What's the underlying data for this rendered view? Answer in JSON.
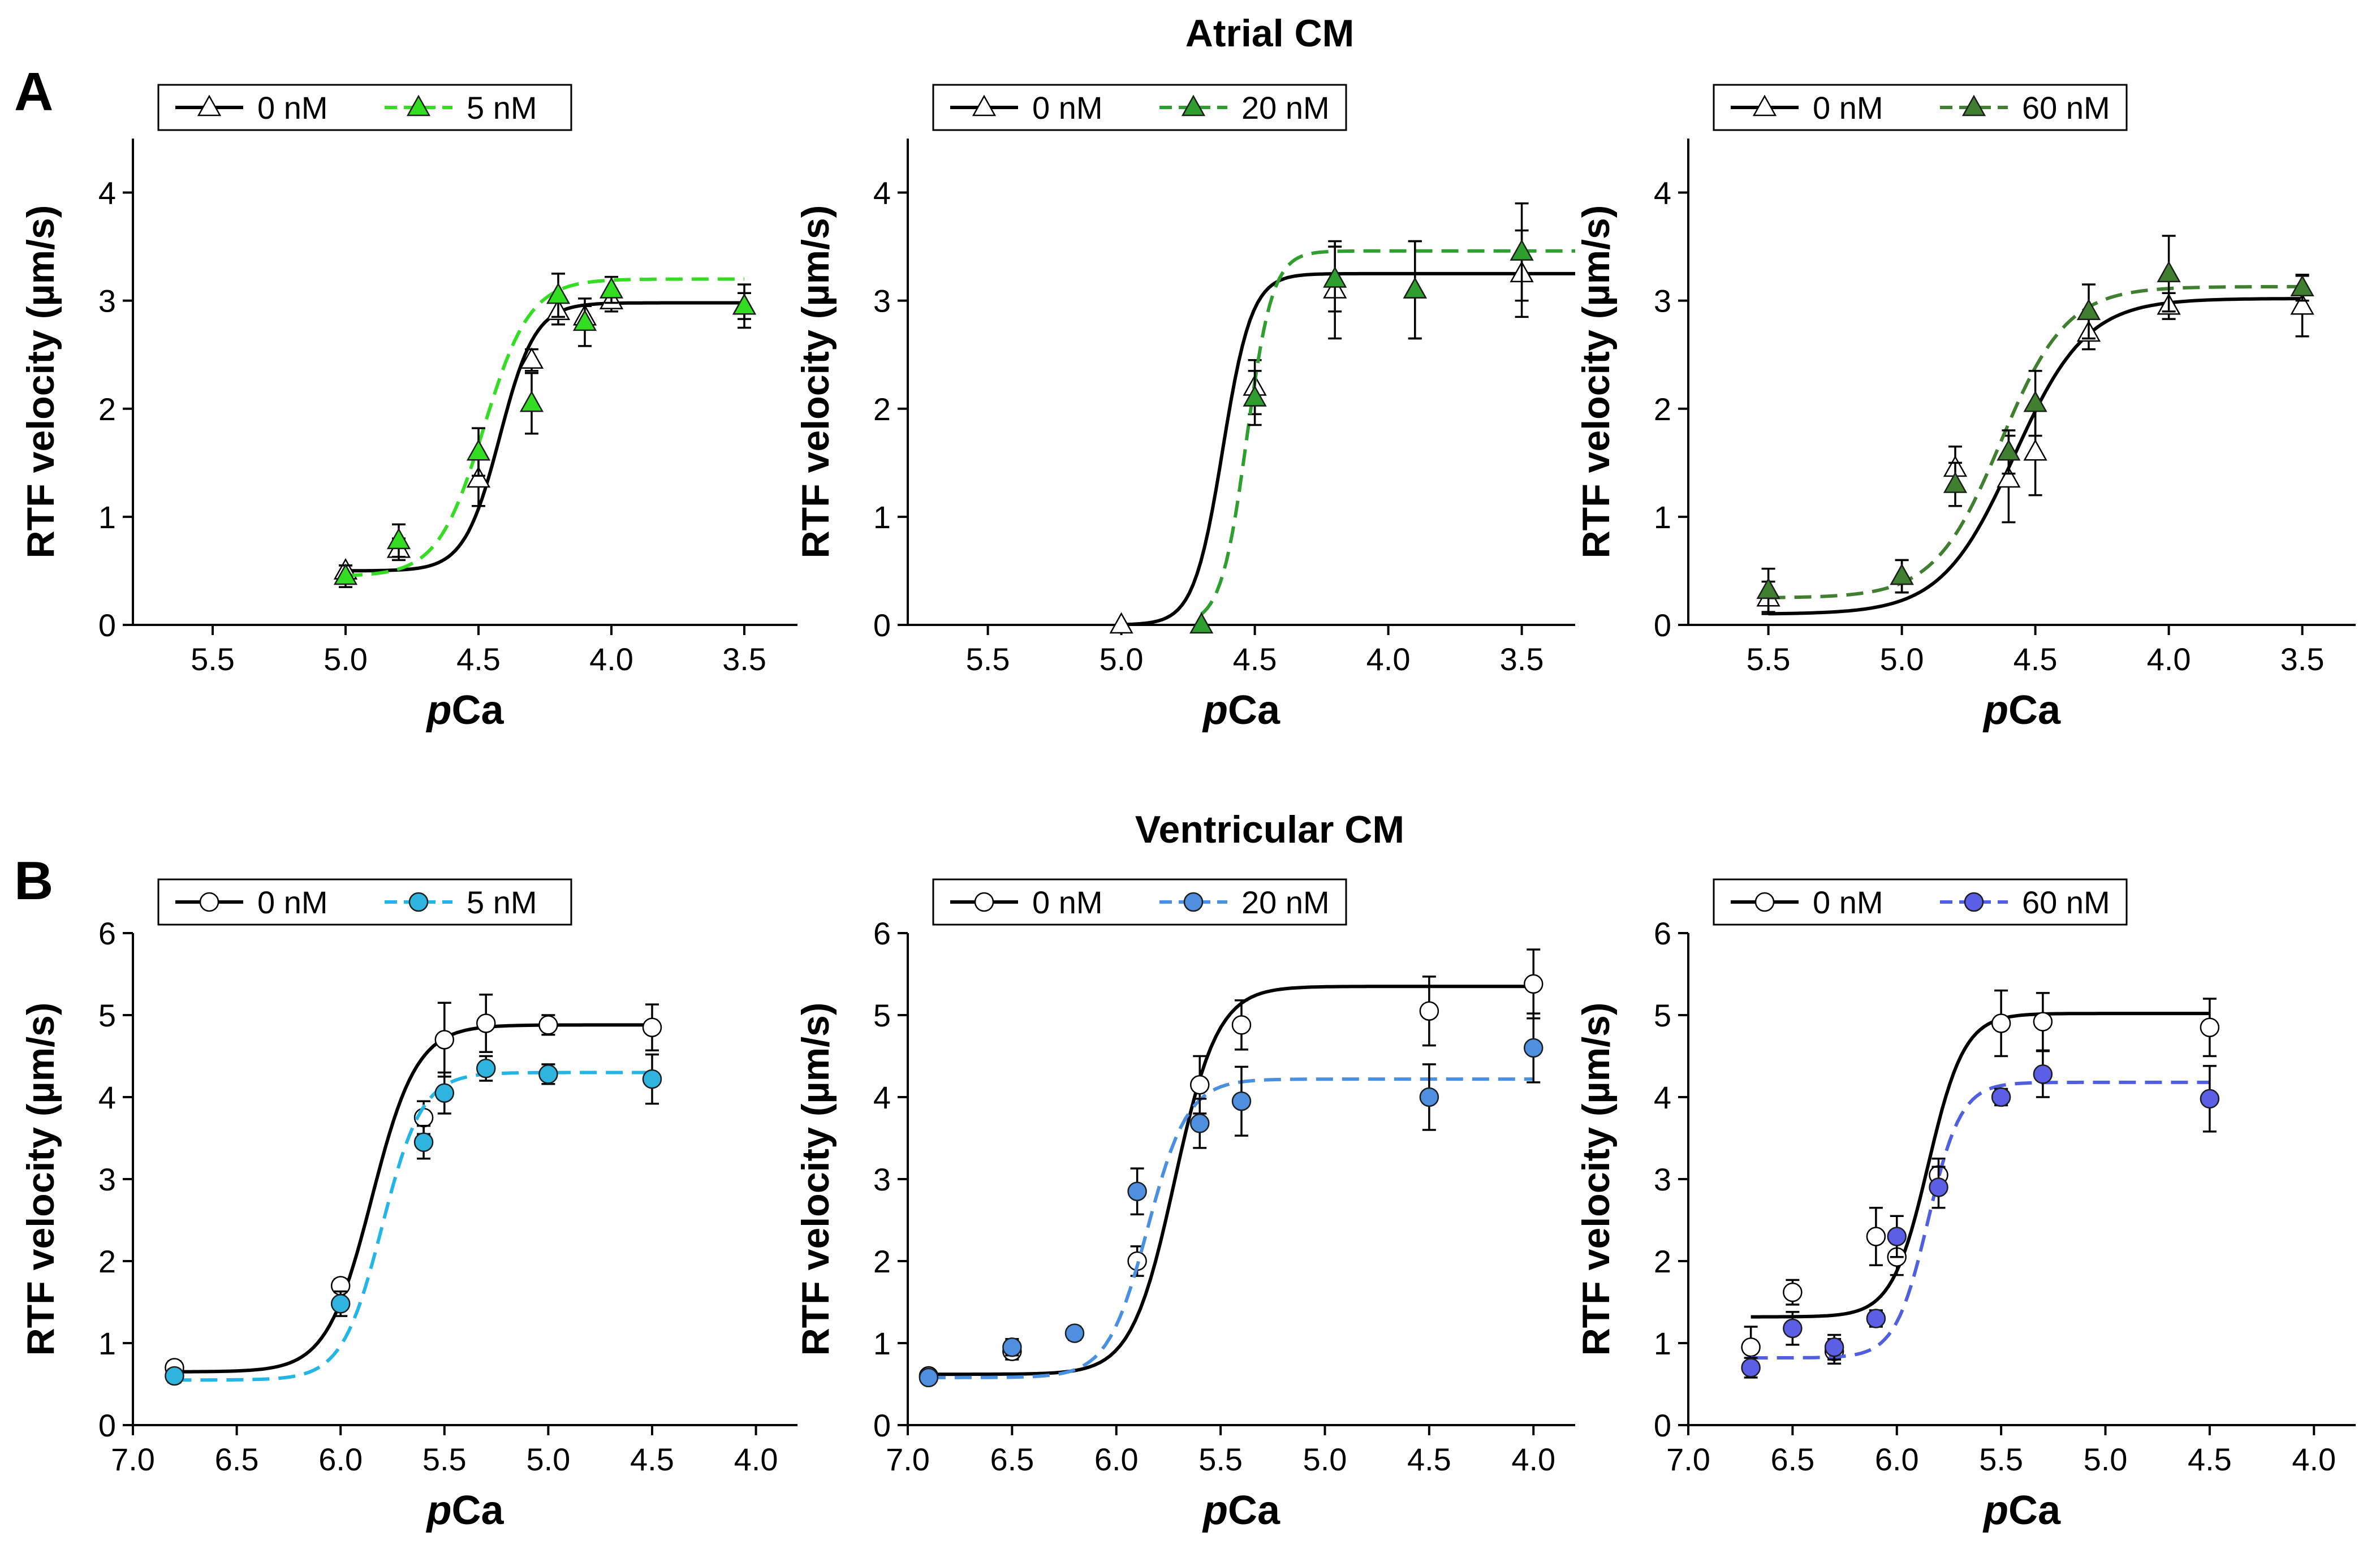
{
  "figure": {
    "row_a": {
      "panel_letter": "A",
      "title": "Atrial CM"
    },
    "row_b": {
      "panel_letter": "B",
      "title": "Ventricular CM"
    },
    "ylabel": "RTF velocity (µm/s)",
    "xlabel_italic": "p",
    "xlabel_rest": "Ca"
  },
  "chart_data": [
    {
      "type": "line",
      "row": "A",
      "title": "Atrial CM",
      "xlabel": "pCa",
      "ylabel": "RTF velocity (µm/s)",
      "xlim": [
        5.8,
        3.3
      ],
      "ylim": [
        0,
        4.5
      ],
      "xticks": [
        "5.5",
        "5.0",
        "4.5",
        "4.0",
        "3.5"
      ],
      "xtick_values": [
        5.5,
        5.0,
        4.5,
        4.0,
        3.5
      ],
      "yticks": [
        "0",
        "1",
        "2",
        "3",
        "4"
      ],
      "ytick_values": [
        0,
        1,
        2,
        3,
        4
      ],
      "marker": "triangle",
      "series": [
        {
          "name": "0 nM",
          "color": "#000000",
          "fill": "#ffffff",
          "dashed": false,
          "x": [
            5.0,
            4.8,
            4.5,
            4.3,
            4.2,
            4.1,
            4.0,
            3.5
          ],
          "y": [
            0.5,
            0.7,
            1.35,
            2.45,
            2.9,
            2.85,
            3.0,
            2.95
          ],
          "err": [
            0.05,
            0.1,
            0.25,
            0.1,
            0.12,
            0.1,
            0.1,
            0.12
          ],
          "fit": {
            "min": 0.5,
            "max": 2.98,
            "ec50": 4.42,
            "slope": 6.5,
            "x0": 5.0,
            "x1": 3.5
          }
        },
        {
          "name": "5 nM",
          "color": "#33dd22",
          "fill": "#33dd22",
          "dashed": true,
          "x": [
            5.0,
            4.8,
            4.5,
            4.3,
            4.2,
            4.1,
            4.0,
            3.5
          ],
          "y": [
            0.45,
            0.78,
            1.6,
            2.05,
            3.05,
            2.8,
            3.1,
            2.95
          ],
          "err": [
            0.1,
            0.15,
            0.22,
            0.28,
            0.2,
            0.22,
            0.12,
            0.2
          ],
          "fit": {
            "min": 0.45,
            "max": 3.2,
            "ec50": 4.48,
            "slope": 5.0,
            "x0": 5.0,
            "x1": 3.5
          }
        }
      ]
    },
    {
      "type": "line",
      "row": "A",
      "title": "Atrial CM",
      "xlabel": "pCa",
      "ylabel": "RTF velocity (µm/s)",
      "xlim": [
        5.8,
        3.3
      ],
      "ylim": [
        0,
        4.5
      ],
      "xticks": [
        "5.5",
        "5.0",
        "4.5",
        "4.0",
        "3.5"
      ],
      "xtick_values": [
        5.5,
        5.0,
        4.5,
        4.0,
        3.5
      ],
      "yticks": [
        "0",
        "1",
        "2",
        "3",
        "4"
      ],
      "ytick_values": [
        0,
        1,
        2,
        3,
        4
      ],
      "marker": "triangle",
      "series": [
        {
          "name": "0 nM",
          "color": "#000000",
          "fill": "#ffffff",
          "dashed": false,
          "x": [
            5.0,
            4.5,
            4.2,
            3.9,
            3.5
          ],
          "y": [
            0.0,
            2.2,
            3.1,
            3.1,
            3.25
          ],
          "err": [
            0.0,
            0.25,
            0.45,
            0.45,
            0.4
          ],
          "fit": {
            "min": 0.0,
            "max": 3.25,
            "ec50": 4.62,
            "slope": 8.0,
            "x0": 5.0,
            "x1": 3.3
          }
        },
        {
          "name": "20 nM",
          "color": "#2e9e2e",
          "fill": "#2e9e2e",
          "dashed": true,
          "x": [
            4.7,
            4.5,
            4.2,
            3.9,
            3.5
          ],
          "y": [
            0.0,
            2.1,
            3.2,
            3.1,
            3.45
          ],
          "err": [
            0.0,
            0.25,
            0.3,
            0.45,
            0.45
          ],
          "fit": {
            "min": 0.0,
            "max": 3.46,
            "ec50": 4.53,
            "slope": 9.0,
            "x0": 4.7,
            "x1": 3.3
          }
        }
      ]
    },
    {
      "type": "line",
      "row": "A",
      "title": "Atrial CM",
      "xlabel": "pCa",
      "ylabel": "RTF velocity (µm/s)",
      "xlim": [
        5.8,
        3.3
      ],
      "ylim": [
        0,
        4.5
      ],
      "xticks": [
        "5.5",
        "5.0",
        "4.5",
        "4.0",
        "3.5"
      ],
      "xtick_values": [
        5.5,
        5.0,
        4.5,
        4.0,
        3.5
      ],
      "yticks": [
        "0",
        "1",
        "2",
        "3",
        "4"
      ],
      "ytick_values": [
        0,
        1,
        2,
        3,
        4
      ],
      "marker": "triangle",
      "series": [
        {
          "name": "0 nM",
          "color": "#000000",
          "fill": "#ffffff",
          "dashed": false,
          "x": [
            5.5,
            5.0,
            4.8,
            4.6,
            4.5,
            4.3,
            4.0,
            3.5
          ],
          "y": [
            0.25,
            0.45,
            1.45,
            1.35,
            1.6,
            2.7,
            2.95,
            2.95
          ],
          "err": [
            0.15,
            0.15,
            0.2,
            0.4,
            0.4,
            0.15,
            0.12,
            0.28
          ],
          "fit": {
            "min": 0.1,
            "max": 3.02,
            "ec50": 4.58,
            "slope": 3.2,
            "x0": 5.5,
            "x1": 3.5
          }
        },
        {
          "name": "60 nM",
          "color": "#3f7f2f",
          "fill": "#3f7f2f",
          "dashed": true,
          "x": [
            5.5,
            5.0,
            4.8,
            4.6,
            4.5,
            4.3,
            4.0,
            3.5
          ],
          "y": [
            0.32,
            0.45,
            1.3,
            1.6,
            2.05,
            2.9,
            3.25,
            3.12
          ],
          "err": [
            0.2,
            0.15,
            0.2,
            0.2,
            0.3,
            0.25,
            0.35,
            0.12
          ],
          "fit": {
            "min": 0.25,
            "max": 3.13,
            "ec50": 4.63,
            "slope": 3.5,
            "x0": 5.5,
            "x1": 3.5
          }
        }
      ]
    },
    {
      "type": "line",
      "row": "B",
      "title": "Ventricular CM",
      "xlabel": "pCa",
      "ylabel": "RTF velocity (µm/s)",
      "xlim": [
        7.0,
        3.8
      ],
      "ylim": [
        0,
        6
      ],
      "xticks": [
        "7.0",
        "6.5",
        "6.0",
        "5.5",
        "5.0",
        "4.5",
        "4.0"
      ],
      "xtick_values": [
        7.0,
        6.5,
        6.0,
        5.5,
        5.0,
        4.5,
        4.0
      ],
      "yticks": [
        "0",
        "1",
        "2",
        "3",
        "4",
        "5",
        "6"
      ],
      "ytick_values": [
        0,
        1,
        2,
        3,
        4,
        5,
        6
      ],
      "marker": "circle",
      "series": [
        {
          "name": "0 nM",
          "color": "#000000",
          "fill": "#ffffff",
          "dashed": false,
          "x": [
            6.8,
            6.0,
            5.6,
            5.5,
            5.3,
            5.0,
            4.5
          ],
          "y": [
            0.7,
            1.7,
            3.75,
            4.7,
            4.9,
            4.88,
            4.85
          ],
          "err": [
            0.08,
            0.08,
            0.2,
            0.45,
            0.35,
            0.12,
            0.28
          ],
          "fit": {
            "min": 0.65,
            "max": 4.88,
            "ec50": 5.85,
            "slope": 4.0,
            "x0": 6.8,
            "x1": 4.5
          }
        },
        {
          "name": "5 nM",
          "color": "#22b5e5",
          "fill": "#2fb4e0",
          "dashed": true,
          "x": [
            6.8,
            6.0,
            5.6,
            5.5,
            5.3,
            5.0,
            4.5
          ],
          "y": [
            0.6,
            1.48,
            3.45,
            4.05,
            4.35,
            4.28,
            4.22
          ],
          "err": [
            0.08,
            0.15,
            0.2,
            0.25,
            0.15,
            0.12,
            0.3
          ],
          "fit": {
            "min": 0.55,
            "max": 4.3,
            "ec50": 5.8,
            "slope": 4.5,
            "x0": 6.8,
            "x1": 4.5
          }
        }
      ]
    },
    {
      "type": "line",
      "row": "B",
      "title": "Ventricular CM",
      "xlabel": "pCa",
      "ylabel": "RTF velocity (µm/s)",
      "xlim": [
        7.0,
        3.8
      ],
      "ylim": [
        0,
        6
      ],
      "xticks": [
        "7.0",
        "6.5",
        "6.0",
        "5.5",
        "5.0",
        "4.5",
        "4.0"
      ],
      "xtick_values": [
        7.0,
        6.5,
        6.0,
        5.5,
        5.0,
        4.5,
        4.0
      ],
      "yticks": [
        "0",
        "1",
        "2",
        "3",
        "4",
        "5",
        "6"
      ],
      "ytick_values": [
        0,
        1,
        2,
        3,
        4,
        5,
        6
      ],
      "marker": "circle",
      "series": [
        {
          "name": "0 nM",
          "color": "#000000",
          "fill": "#ffffff",
          "dashed": false,
          "x": [
            6.9,
            6.5,
            5.9,
            5.6,
            5.4,
            4.5,
            4.0
          ],
          "y": [
            0.6,
            0.9,
            2.0,
            4.15,
            4.88,
            5.05,
            5.38
          ],
          "err": [
            0.05,
            0.1,
            0.18,
            0.35,
            0.3,
            0.42,
            0.42
          ],
          "fit": {
            "min": 0.62,
            "max": 5.35,
            "ec50": 5.72,
            "slope": 4.2,
            "x0": 6.9,
            "x1": 4.0
          }
        },
        {
          "name": "20 nM",
          "color": "#4a90e2",
          "fill": "#4f8fe0",
          "dashed": true,
          "x": [
            6.9,
            6.5,
            6.2,
            5.9,
            5.6,
            5.4,
            4.5,
            4.0
          ],
          "y": [
            0.58,
            0.95,
            1.12,
            2.85,
            3.68,
            3.95,
            4.0,
            4.6
          ],
          "err": [
            0.05,
            0.1,
            0.08,
            0.28,
            0.3,
            0.42,
            0.4,
            0.42
          ],
          "fit": {
            "min": 0.58,
            "max": 4.22,
            "ec50": 5.85,
            "slope": 4.5,
            "x0": 6.9,
            "x1": 4.0
          }
        }
      ]
    },
    {
      "type": "line",
      "row": "B",
      "title": "Ventricular CM",
      "xlabel": "pCa",
      "ylabel": "RTF velocity (µm/s)",
      "xlim": [
        7.0,
        3.8
      ],
      "ylim": [
        0,
        6
      ],
      "xticks": [
        "7.0",
        "6.5",
        "6.0",
        "5.5",
        "5.0",
        "4.5",
        "4.0"
      ],
      "xtick_values": [
        7.0,
        6.5,
        6.0,
        5.5,
        5.0,
        4.5,
        4.0
      ],
      "yticks": [
        "0",
        "1",
        "2",
        "3",
        "4",
        "5",
        "6"
      ],
      "ytick_values": [
        0,
        1,
        2,
        3,
        4,
        5,
        6
      ],
      "marker": "circle",
      "series": [
        {
          "name": "0 nM",
          "color": "#000000",
          "fill": "#ffffff",
          "dashed": false,
          "x": [
            6.7,
            6.5,
            6.3,
            6.1,
            6.0,
            5.8,
            5.5,
            5.3,
            4.5
          ],
          "y": [
            0.95,
            1.62,
            0.9,
            2.3,
            2.05,
            3.05,
            4.9,
            4.92,
            4.85
          ],
          "err": [
            0.25,
            0.15,
            0.15,
            0.35,
            0.22,
            0.2,
            0.4,
            0.35,
            0.35
          ],
          "fit": {
            "min": 1.32,
            "max": 5.02,
            "ec50": 5.85,
            "slope": 5.0,
            "x0": 6.7,
            "x1": 4.5
          }
        },
        {
          "name": "60 nM",
          "color": "#4f5fe0",
          "fill": "#5a5fe6",
          "dashed": true,
          "x": [
            6.7,
            6.5,
            6.3,
            6.1,
            6.0,
            5.8,
            5.5,
            5.3,
            4.5
          ],
          "y": [
            0.7,
            1.18,
            0.95,
            1.3,
            2.3,
            2.9,
            4.0,
            4.28,
            3.98
          ],
          "err": [
            0.12,
            0.2,
            0.15,
            0.1,
            0.25,
            0.25,
            0.1,
            0.28,
            0.4
          ],
          "fit": {
            "min": 0.82,
            "max": 4.18,
            "ec50": 5.85,
            "slope": 5.5,
            "x0": 6.7,
            "x1": 4.5
          }
        }
      ]
    }
  ]
}
